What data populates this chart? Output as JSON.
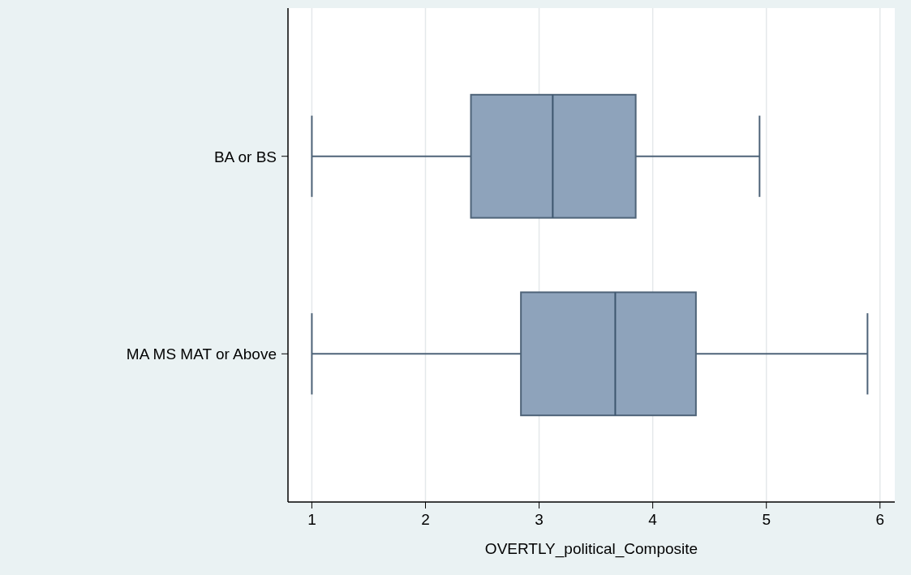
{
  "chart_data": {
    "type": "box",
    "orientation": "horizontal",
    "xlabel": "OVERTLY_political_Composite",
    "categories": [
      "BA or BS",
      "MA MS MAT or Above"
    ],
    "boxes": [
      {
        "low": 1,
        "q1": 2.4,
        "median": 3.12,
        "q3": 3.85,
        "high": 4.94
      },
      {
        "low": 1,
        "q1": 2.84,
        "median": 3.67,
        "q3": 4.38,
        "high": 5.89
      }
    ],
    "color": "#8ea3bb",
    "xlim": [
      0.79,
      6.13
    ],
    "xticks": [
      1,
      2,
      3,
      4,
      5,
      6
    ],
    "grid": "x"
  }
}
